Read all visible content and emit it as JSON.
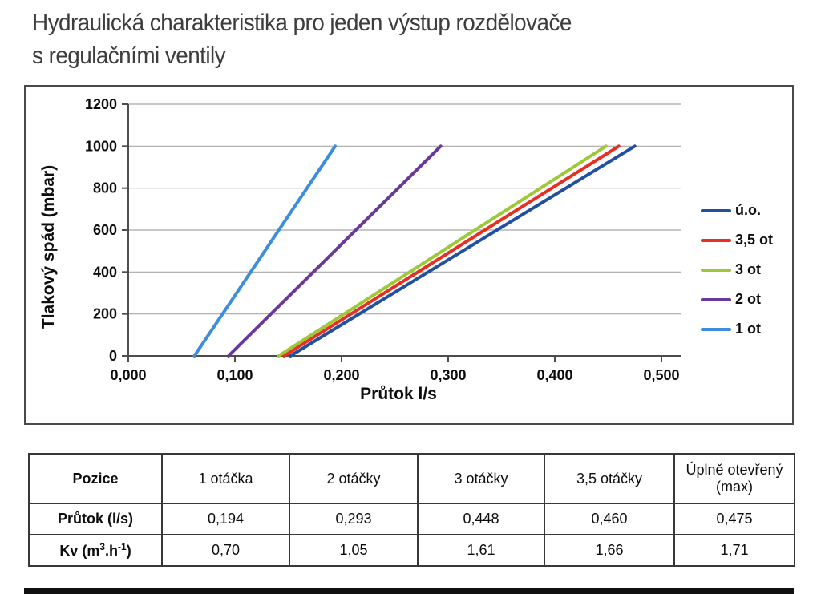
{
  "title": {
    "line1": "Hydraulická charakteristika pro jeden výstup rozdělovače",
    "line2": "s regulačními ventily"
  },
  "chart_data": {
    "type": "line",
    "title": "",
    "xlabel": "Průtok l/s",
    "ylabel": "Tlakový spád (mbar)",
    "xlim": [
      0,
      0.5
    ],
    "ylim": [
      0,
      1200
    ],
    "grid": true,
    "legend_position": "right",
    "x_ticks": {
      "values": [
        0,
        0.1,
        0.2,
        0.3,
        0.4,
        0.5
      ],
      "labels": [
        "0,000",
        "0,100",
        "0,200",
        "0,300",
        "0,400",
        "0,500"
      ]
    },
    "y_ticks": {
      "values": [
        0,
        200,
        400,
        600,
        800,
        1000,
        1200
      ],
      "labels": [
        "0",
        "200",
        "400",
        "600",
        "800",
        "1000",
        "1200"
      ]
    },
    "series": [
      {
        "name": "ú.o.",
        "color": "#2150A0",
        "points": [
          [
            0.152,
            0
          ],
          [
            0.475,
            1000
          ]
        ]
      },
      {
        "name": "3,5 ot",
        "color": "#E72F24",
        "points": [
          [
            0.146,
            0
          ],
          [
            0.46,
            1000
          ]
        ]
      },
      {
        "name": "3 ot",
        "color": "#9DC938",
        "points": [
          [
            0.141,
            0
          ],
          [
            0.448,
            1000
          ]
        ]
      },
      {
        "name": "2 ot",
        "color": "#67399A",
        "points": [
          [
            0.094,
            0
          ],
          [
            0.293,
            1000
          ]
        ]
      },
      {
        "name": "1 ot",
        "color": "#3C8EDC",
        "points": [
          [
            0.062,
            0
          ],
          [
            0.194,
            1000
          ]
        ]
      }
    ]
  },
  "table": {
    "header": [
      "Pozice",
      "1 otáčka",
      "2 otáčky",
      "3 otáčky",
      "3,5 otáčky",
      "Úplně otevřený (max)"
    ],
    "rows": [
      {
        "label_parts": [
          {
            "t": "Průtok (l/s)"
          }
        ],
        "values": [
          "0,194",
          "0,293",
          "0,448",
          "0,460",
          "0,475"
        ]
      },
      {
        "label_parts": [
          {
            "t": "Kv (m"
          },
          {
            "t": "3",
            "sup": true
          },
          {
            "t": ".h"
          },
          {
            "t": "-1",
            "sup": true
          },
          {
            "t": ")"
          }
        ],
        "values": [
          "0,70",
          "1,05",
          "1,61",
          "1,66",
          "1,71"
        ]
      }
    ]
  },
  "colors": {
    "grid": "#A8A8A8",
    "axis": "#4D4D4D",
    "tick_text": "#0d0d0d",
    "title_text": "#3d3d3d",
    "table_border": "#383838",
    "footer_bar": "#111111"
  }
}
